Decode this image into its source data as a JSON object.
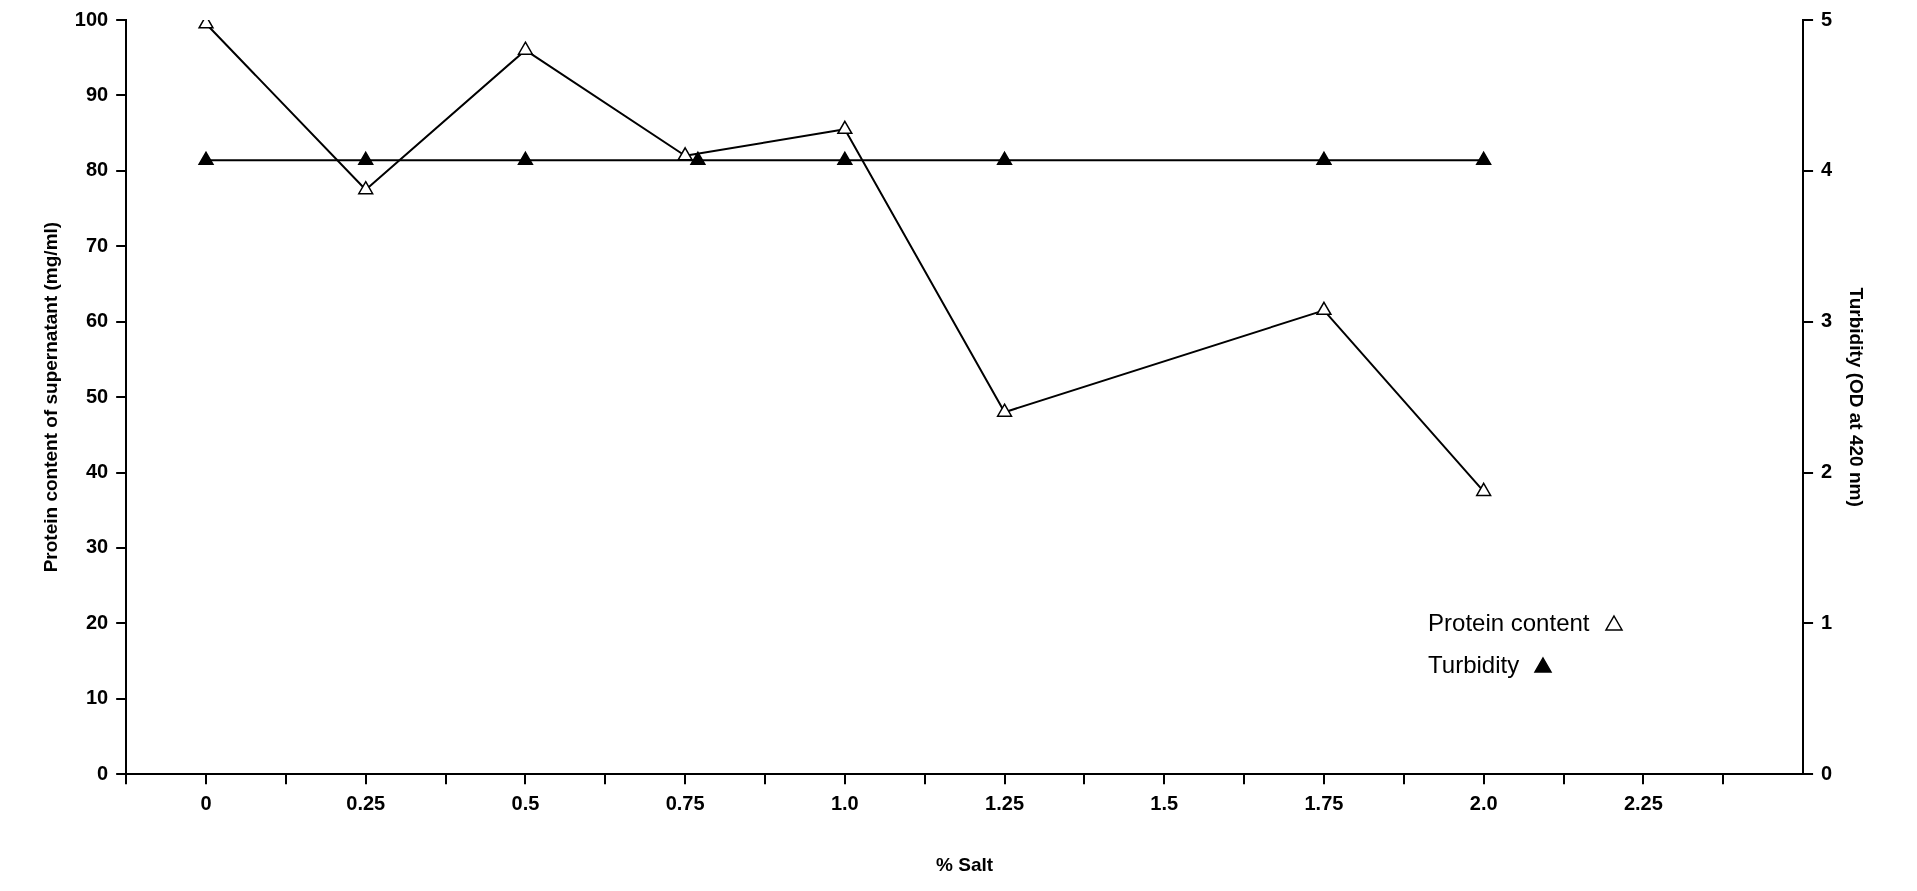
{
  "chart_data": {
    "type": "line",
    "xlabel": "% Salt",
    "ylabel": "Protein content of supernatant (mg/ml)",
    "y2label": "Turbidity (OD at 420 nm)",
    "xlim": [
      -0.125,
      2.5
    ],
    "xticks": [
      {
        "value": -0.125,
        "label": null
      },
      {
        "value": 0,
        "label": "0"
      },
      {
        "value": 0.125,
        "label": null
      },
      {
        "value": 0.25,
        "label": "0.25"
      },
      {
        "value": 0.375,
        "label": null
      },
      {
        "value": 0.5,
        "label": "0.5"
      },
      {
        "value": 0.625,
        "label": null
      },
      {
        "value": 0.75,
        "label": "0.75"
      },
      {
        "value": 0.875,
        "label": null
      },
      {
        "value": 1,
        "label": "1.0"
      },
      {
        "value": 1.125,
        "label": null
      },
      {
        "value": 1.25,
        "label": "1.25"
      },
      {
        "value": 1.375,
        "label": null
      },
      {
        "value": 1.5,
        "label": "1.5"
      },
      {
        "value": 1.625,
        "label": null
      },
      {
        "value": 1.75,
        "label": "1.75"
      },
      {
        "value": 1.875,
        "label": null
      },
      {
        "value": 2,
        "label": "2.0"
      },
      {
        "value": 2.125,
        "label": null
      },
      {
        "value": 2.25,
        "label": "2.25"
      },
      {
        "value": 2.375,
        "label": null
      }
    ],
    "ylim": [
      0,
      100
    ],
    "yticks": [
      0,
      10,
      20,
      30,
      40,
      50,
      60,
      70,
      80,
      90,
      100
    ],
    "y2lim": [
      0,
      5
    ],
    "y2ticks": [
      0,
      1,
      2,
      3,
      4,
      5
    ],
    "grid": false,
    "legend": "bottom right",
    "marker": "triangle",
    "line_style": "solid",
    "series": [
      {
        "name": "Protein content",
        "color": "#000000",
        "x": [
          0,
          0.25,
          0.5,
          0.75,
          1,
          1.25,
          1.75,
          2
        ],
        "values": [
          99.5,
          77.5,
          96,
          82,
          85.5,
          48,
          61.5,
          37.5
        ]
      },
      {
        "name": "Turbidity",
        "color": "#000000",
        "axis": "y2",
        "x": [
          0,
          0.25,
          0.5,
          0.77,
          1,
          1.25,
          1.75,
          2
        ],
        "values": [
          4.07,
          4.07,
          4.07,
          4.07,
          4.07,
          4.07,
          4.07,
          4.07
        ]
      }
    ]
  }
}
